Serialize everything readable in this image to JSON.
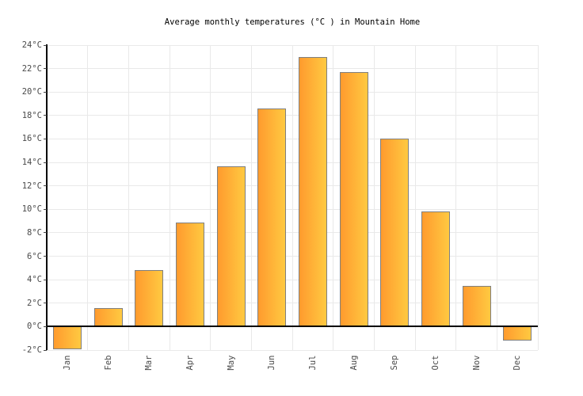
{
  "chart_data": {
    "type": "bar",
    "title": "Average monthly temperatures (°C ) in Mountain Home",
    "categories": [
      "Jan",
      "Feb",
      "Mar",
      "Apr",
      "May",
      "Jun",
      "Jul",
      "Aug",
      "Sep",
      "Oct",
      "Nov",
      "Dec"
    ],
    "values": [
      -1.9,
      1.6,
      4.8,
      8.9,
      13.7,
      18.6,
      23,
      21.7,
      16,
      9.8,
      3.5,
      -1.2
    ],
    "xlabel": "",
    "ylabel": "",
    "ylim": [
      -2,
      24
    ],
    "ytick_step": 2,
    "y_tick_labels": [
      "24°C",
      "22°C",
      "20°C",
      "18°C",
      "16°C",
      "14°C",
      "12°C",
      "10°C",
      "8°C",
      "6°C",
      "4°C",
      "2°C",
      "0°C",
      "-2°C"
    ],
    "grid": true,
    "legend": "none",
    "colors": {
      "bar_gradient_left": "#ff9b2e",
      "bar_gradient_right": "#ffc941",
      "bar_border": "#7f7f7f",
      "gridline": "#e9e9e9",
      "axis_line": "#000000",
      "zero_line": "#000000",
      "label_text": "#4a4a4a",
      "title_text": "#000000",
      "background": "#ffffff"
    }
  }
}
